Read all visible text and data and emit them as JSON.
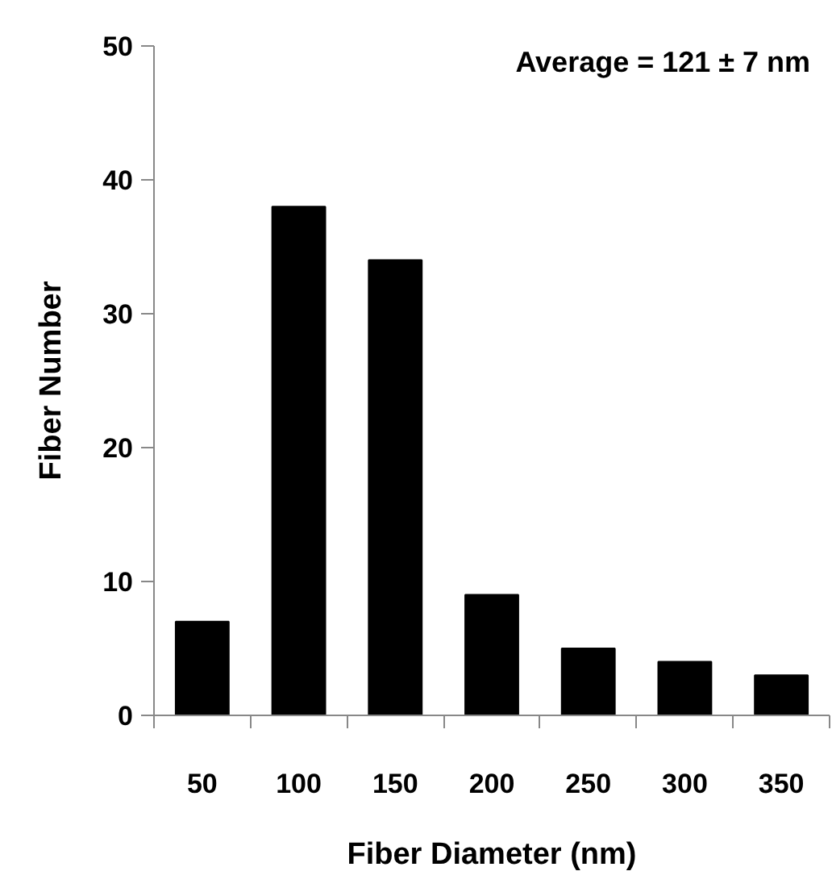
{
  "chart_data": {
    "type": "bar",
    "xlabel": "Fiber Diameter (nm)",
    "ylabel": "Fiber Number",
    "categories": [
      "50",
      "100",
      "150",
      "200",
      "250",
      "300",
      "350"
    ],
    "values": [
      7,
      38,
      34,
      9,
      5,
      4,
      3
    ],
    "color": "#000000",
    "ylim": [
      0,
      50
    ],
    "yticks": [
      0,
      10,
      20,
      30,
      40,
      50
    ],
    "grid": false,
    "annotations": [
      "Average = 121 ± 7 nm"
    ]
  }
}
